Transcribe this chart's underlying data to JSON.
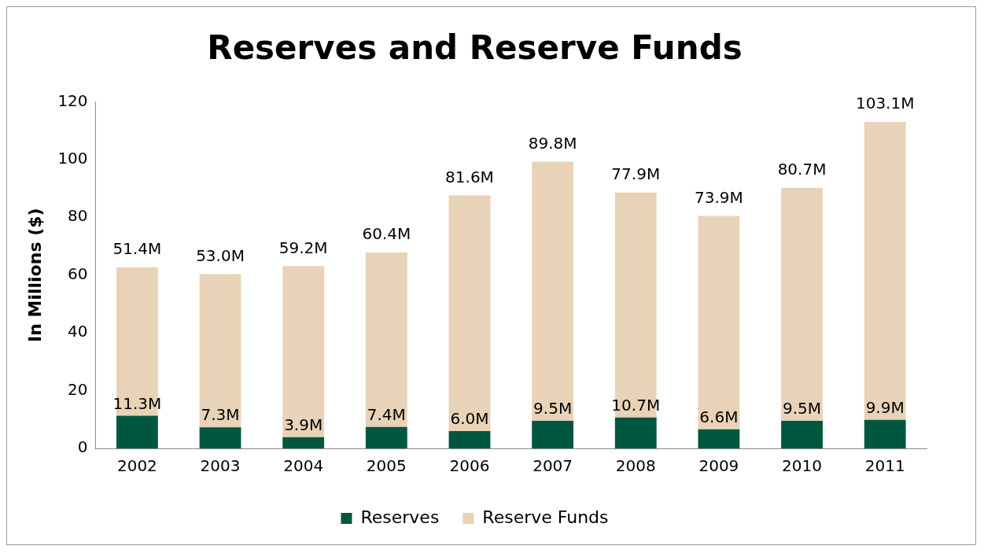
{
  "chart_data": {
    "type": "bar",
    "title": "Reserves and Reserve Funds",
    "ylabel": "In Millions ($)",
    "categories": [
      "2002",
      "2003",
      "2004",
      "2005",
      "2006",
      "2007",
      "2008",
      "2009",
      "2010",
      "2011"
    ],
    "stacked": true,
    "series": [
      {
        "name": "Reserves",
        "color": "#00573f",
        "values": [
          11.3,
          7.3,
          3.9,
          7.4,
          6.0,
          9.5,
          10.7,
          6.6,
          9.5,
          9.9
        ],
        "value_labels": [
          "11.3M",
          "7.3M",
          "3.9M",
          "7.4M",
          "6.0M",
          "9.5M",
          "10.7M",
          "6.6M",
          "9.5M",
          "9.9M"
        ]
      },
      {
        "name": "Reserve Funds",
        "color": "#e8d3b8",
        "values": [
          51.4,
          53.0,
          59.2,
          60.4,
          81.6,
          89.8,
          77.9,
          73.9,
          80.7,
          103.1
        ],
        "value_labels": [
          "51.4M",
          "53.0M",
          "59.2M",
          "60.4M",
          "81.6M",
          "89.8M",
          "77.9M",
          "73.9M",
          "80.7M",
          "103.1M"
        ]
      }
    ],
    "ylim": [
      0,
      120
    ],
    "yticks": [
      0,
      20,
      40,
      60,
      80,
      100,
      120
    ],
    "grid": false,
    "legend": "bottom"
  }
}
